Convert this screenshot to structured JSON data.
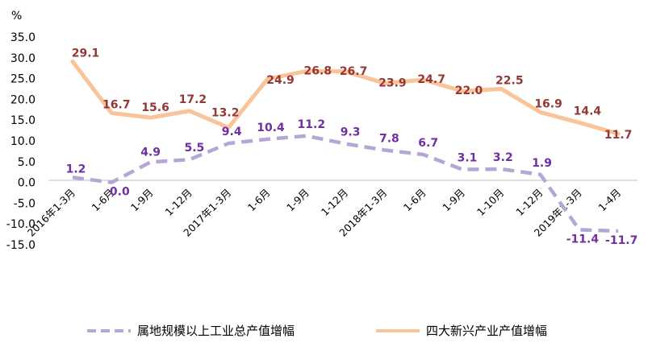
{
  "chart_data": {
    "type": "line",
    "unit": "%",
    "categories": [
      "2016年1-3月",
      "1-6月",
      "1-9月",
      "1-12月",
      "2017年1-3月",
      "1-6月",
      "1-9月",
      "1-12月",
      "2018年1-3月",
      "1-6月",
      "1-9月",
      "1-10月",
      "1-12月",
      "2019年1-3月",
      "1-4月"
    ],
    "ylim": [
      -15.0,
      35.0
    ],
    "yticks": [
      "35.0",
      "30.0",
      "25.0",
      "20.0",
      "15.0",
      "10.0",
      "5.0",
      "0.0",
      "-5.0",
      "-10.0",
      "-15.0"
    ],
    "grid": false,
    "legend_position": "bottom",
    "series": [
      {
        "name": "属地规模以上工业总产值增幅",
        "color": "#B4A7D6",
        "label_color": "#7030A0",
        "style": "dashed",
        "values": [
          1.2,
          0.0,
          4.9,
          5.5,
          9.4,
          10.4,
          11.2,
          9.3,
          7.8,
          6.7,
          3.1,
          3.2,
          1.9,
          -11.4,
          -11.7
        ],
        "labels": [
          "1.2",
          "0.0",
          "4.9",
          "5.5",
          "9.4",
          "10.4",
          "11.2",
          "9.3",
          "7.8",
          "6.7",
          "3.1",
          "3.2",
          "1.9",
          "-11.4",
          "-11.7"
        ]
      },
      {
        "name": "四大新兴产业产值增幅",
        "color": "#F9C49A",
        "label_color": "#953735",
        "style": "solid",
        "values": [
          29.1,
          16.7,
          15.6,
          17.2,
          13.2,
          24.9,
          26.8,
          26.7,
          23.9,
          24.7,
          22.0,
          22.5,
          16.9,
          14.4,
          11.7
        ],
        "labels": [
          "29.1",
          "16.7",
          "15.6",
          "17.2",
          "13.2",
          "24.9",
          "26.8",
          "26.7",
          "23.9",
          "24.7",
          "22.0",
          "22.5",
          "16.9",
          "14.4",
          "11.7"
        ]
      }
    ]
  }
}
